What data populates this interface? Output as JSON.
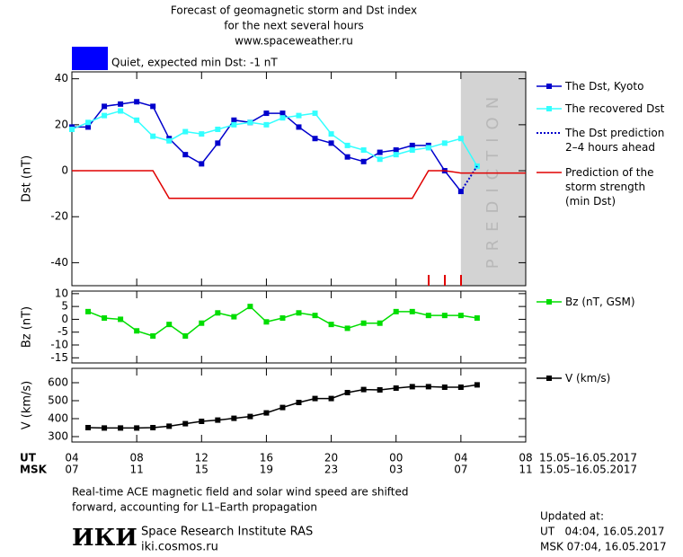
{
  "header": {
    "title": [
      "Forecast of geomagnetic storm and Dst index",
      "for the next several hours",
      "www.spaceweather.ru"
    ],
    "status_color": "#0000ff",
    "status": "Quiet, expected min Dst: -1 nT"
  },
  "chart_data": [
    {
      "type": "line",
      "ylabel": "Dst (nT)",
      "ylim": [
        -50,
        43
      ],
      "yticks": [
        -40,
        -20,
        0,
        20,
        40
      ],
      "legend": "right",
      "prediction_zone": [
        24,
        28
      ],
      "prediction_label": "PREDICTION",
      "series": [
        {
          "name": "The Dst, Kyoto",
          "color": "#0000cc",
          "marker": true,
          "style": "solid",
          "x": [
            0,
            1,
            2,
            3,
            4,
            5,
            6,
            7,
            8,
            9,
            10,
            11,
            12,
            13,
            14,
            15,
            16,
            17,
            18,
            19,
            20,
            21,
            22,
            23,
            24
          ],
          "values": [
            19,
            19,
            28,
            29,
            30,
            28,
            14,
            7,
            3,
            12,
            22,
            21,
            25,
            25,
            19,
            14,
            12,
            6,
            4,
            8,
            9,
            11,
            11,
            0,
            -9
          ]
        },
        {
          "name": "The recovered Dst",
          "color": "#33ffff",
          "marker": true,
          "style": "solid",
          "x": [
            0,
            1,
            2,
            3,
            4,
            5,
            6,
            7,
            8,
            9,
            10,
            11,
            12,
            13,
            14,
            15,
            16,
            17,
            18,
            19,
            20,
            21,
            22,
            23,
            24,
            25
          ],
          "values": [
            18,
            21,
            24,
            26,
            22,
            15,
            13,
            17,
            16,
            18,
            20,
            21,
            20,
            23,
            24,
            25,
            16,
            11,
            9,
            5,
            7,
            9,
            10,
            12,
            14,
            2
          ]
        },
        {
          "name": "The Dst prediction\n2–4 hours ahead",
          "color": "#0000cc",
          "marker": false,
          "style": "dotted",
          "x": [
            24,
            25
          ],
          "values": [
            -9,
            2
          ]
        },
        {
          "name": "Prediction of the\nstorm strength\n(min Dst)",
          "color": "#e00000",
          "marker": false,
          "style": "solid",
          "x": [
            0,
            5,
            6,
            21,
            22,
            23,
            24,
            28
          ],
          "values": [
            0,
            0,
            -12,
            -12,
            0,
            0,
            -1,
            -1
          ]
        }
      ]
    },
    {
      "type": "line",
      "ylabel": "Bz (nT)",
      "ylim": [
        -17,
        11
      ],
      "yticks": [
        -15,
        -10,
        -5,
        0,
        5,
        10
      ],
      "legend": "right",
      "series": [
        {
          "name": "Bz (nT, GSM)",
          "color": "#00dd00",
          "marker": true,
          "style": "solid",
          "x": [
            1,
            2,
            3,
            4,
            5,
            6,
            7,
            8,
            9,
            10,
            11,
            12,
            13,
            14,
            15,
            16,
            17,
            18,
            19,
            20,
            21,
            22,
            23,
            24,
            25
          ],
          "values": [
            3,
            0.5,
            0,
            -4.5,
            -6.5,
            -2,
            -6.5,
            -1.5,
            2.5,
            1,
            5,
            -1,
            0.5,
            2.5,
            1.5,
            -2,
            -3.5,
            -1.5,
            -1.5,
            3,
            3,
            1.5,
            1.5,
            1.5,
            0.5
          ]
        }
      ]
    },
    {
      "type": "line",
      "ylabel": "V (km/s)",
      "ylim": [
        270,
        680
      ],
      "yticks": [
        300,
        400,
        500,
        600
      ],
      "legend": "right",
      "xlim": [
        0,
        28
      ],
      "xticks": [
        {
          "value": 0,
          "label": "04"
        },
        {
          "value": 4,
          "label": "08"
        },
        {
          "value": 8,
          "label": "12"
        },
        {
          "value": 12,
          "label": "16"
        },
        {
          "value": 16,
          "label": "20"
        },
        {
          "value": 20,
          "label": "00"
        },
        {
          "value": 24,
          "label": "04"
        },
        {
          "value": 28,
          "label": "08"
        }
      ],
      "x_row_label": "UT",
      "x_date": "15.05–16.05.2017",
      "msk_row_label": "MSK",
      "msk_labels": [
        "07",
        "11",
        "15",
        "19",
        "23",
        "03",
        "07",
        "11"
      ],
      "msk_date": "15.05–16.05.2017",
      "series": [
        {
          "name": "V (km/s)",
          "color": "#000000",
          "marker": true,
          "style": "solid",
          "x": [
            1,
            2,
            3,
            4,
            5,
            6,
            7,
            8,
            9,
            10,
            11,
            12,
            13,
            14,
            15,
            16,
            17,
            18,
            19,
            20,
            21,
            22,
            23,
            24,
            25
          ],
          "values": [
            350,
            348,
            348,
            348,
            350,
            358,
            372,
            385,
            392,
            402,
            412,
            432,
            462,
            490,
            512,
            512,
            545,
            562,
            560,
            570,
            578,
            578,
            575,
            575,
            588
          ]
        }
      ]
    }
  ],
  "footer": {
    "note": [
      "Real-time ACE magnetic field and solar wind speed are shifted",
      "forward, accounting for L1–Earth propagation"
    ],
    "logo": "ИКИ",
    "institute": "Space Research Institute RAS",
    "site": "iki.cosmos.ru",
    "updated": [
      "Updated at:",
      "UT   04:04, 16.05.2017",
      "MSK 07:04, 16.05.2017"
    ]
  }
}
